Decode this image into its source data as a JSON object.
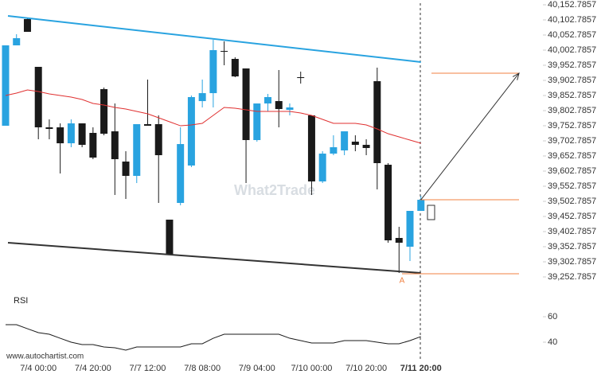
{
  "chart_data": {
    "type": "candlestick",
    "categories": [
      null,
      null,
      null,
      "7/4 00:00",
      null,
      null,
      null,
      null,
      "7/4 20:00",
      null,
      null,
      null,
      null,
      "7/7 12:00",
      null,
      null,
      null,
      null,
      "7/8 08:00",
      null,
      null,
      null,
      null,
      "7/9 04:00",
      null,
      null,
      null,
      null,
      "7/10 00:00",
      null,
      null,
      null,
      null,
      "7/10 20:00",
      null,
      null,
      null,
      null,
      "7/11 20:00"
    ],
    "open": [
      39752.7,
      40018.6,
      40105.4,
      39947.5,
      39747.5,
      39747.5,
      39694.8,
      39760.6,
      39729.1,
      39873.8,
      39734.3,
      39634.3,
      39587.0,
      39758.0,
      39758.0,
      39442.2,
      39497.5,
      39621.2,
      39834.3,
      39860.6,
      40000.1,
      39973.8,
      39942.2,
      39705.4,
      39826.4,
      39834.3,
      39805.4,
      39913.3,
      39787.0,
      39568.6,
      39660.6,
      39671.2,
      39700.1,
      39689.6,
      39900.1,
      39623.8,
      39381.7,
      39352.7,
      39471.2
    ],
    "high": [
      40018.6,
      40055.4,
      40110.7,
      39947.5,
      39773.8,
      39760.6,
      39773.8,
      39760.6,
      39747.5,
      39879.0,
      39826.4,
      39668.5,
      39758.0,
      39905.4,
      39787.0,
      39442.2,
      39747.5,
      39852.7,
      39905.4,
      40037.0,
      40031.7,
      39979.1,
      39942.2,
      39826.4,
      39858.0,
      39937.0,
      39826.4,
      39931.7,
      39787.0,
      39668.5,
      39721.2,
      39734.3,
      39721.2,
      39708.0,
      39944.9,
      39629.1,
      39418.5,
      39471.2,
      39521.2
    ],
    "low": [
      39752.7,
      40018.6,
      40063.3,
      39708.0,
      39708.0,
      39594.9,
      39681.7,
      39681.7,
      39642.2,
      39721.2,
      39523.9,
      39510.7,
      39563.3,
      39752.7,
      39497.5,
      39326.4,
      39489.6,
      39615.9,
      39813.3,
      39813.3,
      39952.8,
      39913.3,
      39563.3,
      39700.1,
      39800.1,
      39747.5,
      39787.0,
      39892.2,
      39523.9,
      39563.3,
      39655.4,
      39655.4,
      39668.5,
      39655.4,
      39542.3,
      39365.9,
      39265.9,
      39305.4,
      39471.2
    ],
    "close": [
      40018.6,
      40042.3,
      40063.3,
      39747.5,
      39742.2,
      39694.8,
      39760.6,
      39689.6,
      39647.5,
      39726.4,
      39642.2,
      39587.0,
      39758.0,
      39752.7,
      39655.4,
      39326.4,
      39692.2,
      39847.5,
      39860.6,
      40002.8,
      39997.5,
      39915.9,
      39705.4,
      39826.4,
      39847.5,
      39808.0,
      39813.3,
      39910.6,
      39568.6,
      39660.6,
      39681.7,
      39734.3,
      39689.6,
      39679.1,
      39629.1,
      39373.8,
      39365.9,
      39471.2,
      39508.0
    ],
    "up_color": "#29a3e0",
    "down_color": "#1a1a1a",
    "ylim": [
      39252.7857,
      40152.7857
    ],
    "yticks": [
      {
        "value": 40152.7857,
        "label": "40,152.7857"
      },
      {
        "value": 40102.7857,
        "label": "40,102.7857"
      },
      {
        "value": 40052.7857,
        "label": "40,052.7857"
      },
      {
        "value": 40002.7857,
        "label": "40,002.7857"
      },
      {
        "value": 39952.7857,
        "label": "39,952.7857"
      },
      {
        "value": 39902.7857,
        "label": "39,902.7857"
      },
      {
        "value": 39852.7857,
        "label": "39,852.7857"
      },
      {
        "value": 39802.7857,
        "label": "39,802.7857"
      },
      {
        "value": 39752.7857,
        "label": "39,752.7857"
      },
      {
        "value": 39702.7857,
        "label": "39,702.7857"
      },
      {
        "value": 39652.7857,
        "label": "39,652.7857"
      },
      {
        "value": 39602.7857,
        "label": "39,602.7857"
      },
      {
        "value": 39552.7857,
        "label": "39,552.7857"
      },
      {
        "value": 39502.7857,
        "label": "39,502.7857"
      },
      {
        "value": 39452.7857,
        "label": "39,452.7857"
      },
      {
        "value": 39402.7857,
        "label": "39,402.7857"
      },
      {
        "value": 39352.7857,
        "label": "39,352.7857"
      },
      {
        "value": 39302.7857,
        "label": "39,302.7857"
      },
      {
        "value": 39252.7857,
        "label": "39,252.7857"
      }
    ],
    "moving_average": {
      "color": "#e03030",
      "values": [
        39852.7,
        39860.6,
        39871.1,
        39865.9,
        39858.0,
        39852.7,
        39847.5,
        39839.6,
        39826.4,
        39821.2,
        39813.3,
        39808.0,
        39800.1,
        39792.2,
        39779.1,
        39765.9,
        39752.7,
        39755.4,
        39760.6,
        39787.0,
        39813.3,
        39810.6,
        39805.4,
        39800.1,
        39800.1,
        39800.1,
        39800.1,
        39794.9,
        39787.0,
        39773.8,
        39760.6,
        39760.6,
        39760.6,
        39755.4,
        39742.2,
        39726.4,
        39715.9,
        39705.4,
        39694.8
      ]
    },
    "channel": {
      "upper": [
        40115.9,
        39963.4
      ],
      "lower": [
        39365.9,
        39265.9
      ],
      "upper_color": "#29a3e0",
      "lower_color": "#333333"
    },
    "levels": [
      39926.5,
      39508.0,
      39263.3
    ],
    "level_color": "#f08040",
    "pattern_label": "A",
    "rsi": {
      "title": "RSI",
      "color": "#1a1a1a",
      "ylim": [
        30,
        70
      ],
      "yticks": [
        60,
        40
      ],
      "values": [
        53.75,
        53.75,
        50.6,
        47.5,
        46.25,
        43.1,
        40,
        38.1,
        38.1,
        36.25,
        35.6,
        33.75,
        36.25,
        36.25,
        36.25,
        36.25,
        36.25,
        38.75,
        38.75,
        43.1,
        46.25,
        46.25,
        46.25,
        46.25,
        46.25,
        46.25,
        43.1,
        41.25,
        39.4,
        39.4,
        39.4,
        41.25,
        41.25,
        41.25,
        40,
        38.75,
        38.75,
        41.25,
        44.4
      ]
    },
    "watermark": "What2Trade",
    "source": "www.autochartist.com"
  }
}
